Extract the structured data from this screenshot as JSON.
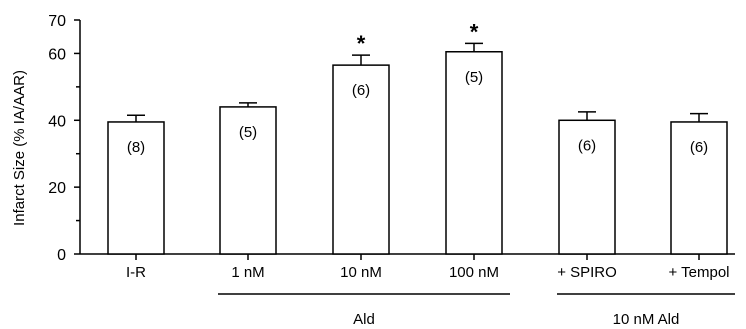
{
  "chart_data": {
    "type": "bar",
    "ylabel": "Infarct Size (% IA/AAR)",
    "ylim": [
      0,
      70
    ],
    "yticks": [
      "0",
      "20",
      "40",
      "60",
      "70"
    ],
    "minor_yticks": [
      10,
      30,
      50
    ],
    "categories": [
      "I-R",
      "1 nM",
      "10 nM",
      "100 nM",
      "+ SPIRO",
      "+ Tempol"
    ],
    "values": [
      39.5,
      44,
      56.5,
      60.5,
      40,
      39.5
    ],
    "errors": [
      2,
      1.2,
      3,
      2.5,
      2.5,
      2.5
    ],
    "n_labels": [
      "(8)",
      "(5)",
      "(6)",
      "(5)",
      "(6)",
      "(6)"
    ],
    "significance": [
      "",
      "",
      "*",
      "*",
      "",
      ""
    ],
    "groups": [
      {
        "label": "Ald",
        "from": 1,
        "to": 3
      },
      {
        "label": "10 nM Ald",
        "from": 4,
        "to": 5
      }
    ],
    "bar_fill": "#ffffff",
    "bar_stroke": "#000000"
  }
}
